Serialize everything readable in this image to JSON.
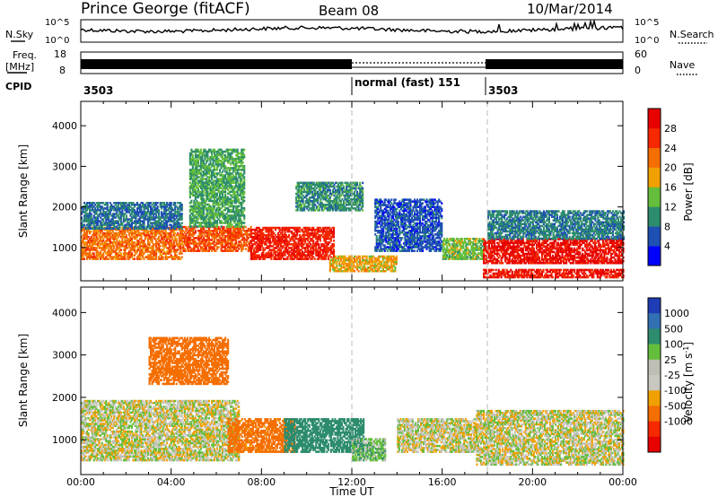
{
  "header": {
    "station": "Prince George (fitACF)",
    "beam": "Beam 08",
    "date": "10/Mar/2014"
  },
  "noise_panel": {
    "left_label": "N.Sky",
    "right_label": "N.Search",
    "scale_top": "10^5",
    "scale_bottom": "10^0"
  },
  "freq_panel": {
    "left_label_1": "Freq.",
    "left_label_2": "[MHz]",
    "left_ticks": [
      "18",
      "8"
    ],
    "right_label": "Nave",
    "right_ticks": [
      "60",
      "0"
    ]
  },
  "cpid_panel": {
    "label": "CPID",
    "segments": [
      {
        "start_hour": 0,
        "end_hour": 12,
        "text": "3503"
      },
      {
        "start_hour": 12,
        "end_hour": 18,
        "text": "normal (fast) 151"
      },
      {
        "start_hour": 18,
        "end_hour": 24,
        "text": "3503"
      }
    ]
  },
  "colors": {
    "power": [
      "#0000ff",
      "#1e50b4",
      "#2d8c6e",
      "#64be3c",
      "#f0a000",
      "#f56e00",
      "#f52800",
      "#e60000"
    ],
    "velocity": [
      "#1e3cb4",
      "#3270b4",
      "#2d8c6e",
      "#64be3c",
      "#bebeb4",
      "#c8c8c0",
      "#f0a000",
      "#f56e00",
      "#f52800",
      "#e60000"
    ]
  },
  "chart_data": [
    {
      "type": "heatmap",
      "name": "power",
      "xlabel": "",
      "ylabel": "Slant Range [km]",
      "x_range_hours": [
        0,
        24
      ],
      "x_tick_labels": [
        "00:00",
        "04:00",
        "08:00",
        "12:00",
        "16:00",
        "20:00",
        "00:00"
      ],
      "ylim": [
        180,
        4600
      ],
      "y_ticks": [
        1000,
        2000,
        3000,
        4000
      ],
      "dashed_lines_hours": [
        12,
        18
      ],
      "colorbar": {
        "label": "Power [dB]",
        "ticks": [
          "4",
          "8",
          "12",
          "16",
          "20",
          "24",
          "28"
        ],
        "range": [
          0,
          32
        ]
      },
      "echo_regions": [
        {
          "start": 0.0,
          "end": 4.5,
          "low": 700,
          "high": 1500,
          "value": 22
        },
        {
          "start": 0.0,
          "end": 4.5,
          "low": 1450,
          "high": 2100,
          "value": 8
        },
        {
          "start": 4.5,
          "end": 7.5,
          "low": 900,
          "high": 1500,
          "value": 24
        },
        {
          "start": 4.8,
          "end": 7.2,
          "low": 1500,
          "high": 3400,
          "value": 12
        },
        {
          "start": 7.5,
          "end": 11.2,
          "low": 700,
          "high": 1500,
          "value": 27
        },
        {
          "start": 9.5,
          "end": 12.5,
          "low": 1900,
          "high": 2600,
          "value": 10
        },
        {
          "start": 11.0,
          "end": 14.0,
          "low": 400,
          "high": 800,
          "value": 18
        },
        {
          "start": 13.0,
          "end": 16.0,
          "low": 900,
          "high": 2200,
          "value": 6
        },
        {
          "start": 16.0,
          "end": 17.8,
          "low": 700,
          "high": 1200,
          "value": 14
        },
        {
          "start": 17.8,
          "end": 24.0,
          "low": 600,
          "high": 1200,
          "value": 29
        },
        {
          "start": 17.8,
          "end": 24.0,
          "low": 250,
          "high": 450,
          "value": 28
        },
        {
          "start": 18.0,
          "end": 24.0,
          "low": 1200,
          "high": 1900,
          "value": 9
        }
      ]
    },
    {
      "type": "heatmap",
      "name": "velocity",
      "xlabel": "Time UT",
      "ylabel": "Slant Range [km]",
      "x_range_hours": [
        0,
        24
      ],
      "x_tick_labels": [
        "00:00",
        "04:00",
        "08:00",
        "12:00",
        "16:00",
        "20:00",
        "00:00"
      ],
      "ylim": [
        180,
        4600
      ],
      "y_ticks": [
        1000,
        2000,
        3000,
        4000
      ],
      "dashed_lines_hours": [
        12,
        18
      ],
      "colorbar": {
        "label": "Velocity [m s^-1]",
        "ticks": [
          "1000",
          "500",
          "100",
          "25",
          "-25",
          "-100",
          "-500",
          "-1000"
        ]
      },
      "echo_regions": [
        {
          "start": 0.0,
          "end": 7.0,
          "low": 500,
          "high": 1900,
          "value": 0
        },
        {
          "start": 3.0,
          "end": 6.5,
          "low": 2300,
          "high": 3400,
          "value": -200
        },
        {
          "start": 6.5,
          "end": 9.5,
          "low": 700,
          "high": 1500,
          "value": -150
        },
        {
          "start": 9.0,
          "end": 12.5,
          "low": 700,
          "high": 1500,
          "value": 300
        },
        {
          "start": 12.0,
          "end": 13.5,
          "low": 500,
          "high": 1000,
          "value": 60
        },
        {
          "start": 14.0,
          "end": 17.5,
          "low": 700,
          "high": 1500,
          "value": 0
        },
        {
          "start": 17.5,
          "end": 24.0,
          "low": 400,
          "high": 1700,
          "value": 0
        }
      ]
    }
  ]
}
